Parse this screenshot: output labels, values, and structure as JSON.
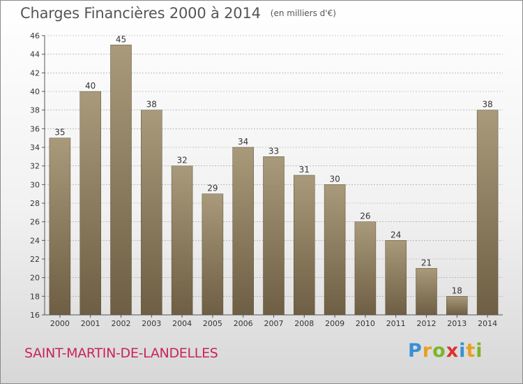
{
  "title": "Charges Financières 2000 à 2014",
  "unit": "(en milliers d'€)",
  "commune": "SAINT-MARTIN-DE-LANDELLES",
  "brand": "Proxiti",
  "colors": {
    "bar_top": "#a89a7a",
    "bar_bottom": "#6e5e44",
    "grid": "#999999",
    "commune_text": "#c8245a"
  },
  "chart_data": {
    "type": "bar",
    "title": "Charges Financières 2000 à 2014",
    "subtitle": "(en milliers d'€)",
    "xlabel": "",
    "ylabel": "",
    "categories": [
      "2000",
      "2001",
      "2002",
      "2003",
      "2004",
      "2005",
      "2006",
      "2007",
      "2008",
      "2009",
      "2010",
      "2011",
      "2012",
      "2013",
      "2014"
    ],
    "values": [
      35,
      40,
      45,
      38,
      32,
      29,
      34,
      33,
      31,
      30,
      26,
      24,
      21,
      18,
      38
    ],
    "ylim": [
      16,
      46
    ],
    "yticks": [
      16,
      18,
      20,
      22,
      24,
      26,
      28,
      30,
      32,
      34,
      36,
      38,
      40,
      42,
      44,
      46
    ],
    "grid": true,
    "data_labels": true
  }
}
